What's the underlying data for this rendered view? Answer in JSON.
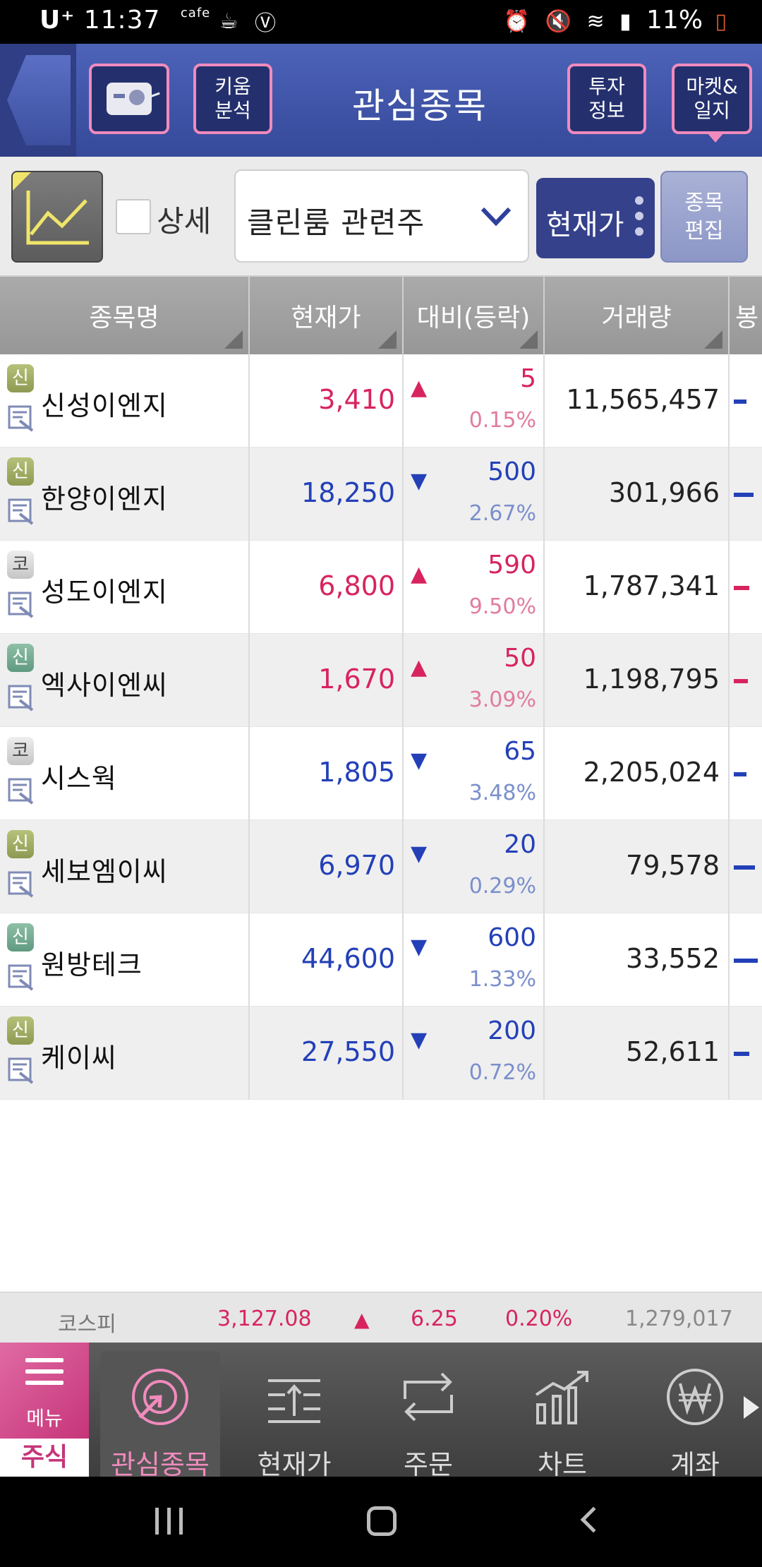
{
  "status_bar": {
    "carrier": "U⁺",
    "time": "11:37",
    "cafe_label": "cafe",
    "battery": "11%"
  },
  "header": {
    "kiwoom_label_1": "키움",
    "kiwoom_label_2": "분석",
    "title": "관심종목",
    "invest_label_1": "투자",
    "invest_label_2": "정보",
    "market_label_1": "마켓&",
    "market_label_2": "일지"
  },
  "toolbar": {
    "detail_label": "상세",
    "group_value": "클린룸 관련주",
    "price_button": "현재가",
    "edit_label_1": "종목",
    "edit_label_2": "편집"
  },
  "table": {
    "columns": [
      "종목명",
      "현재가",
      "대비(등락)",
      "거래량",
      "봉"
    ],
    "rows": [
      {
        "badge": "신",
        "badge_style": "shin",
        "name": "신성이엔지",
        "price": "3,410",
        "dir": "up",
        "change": "5",
        "pct": "0.15%",
        "volume": "11,565,457",
        "mini_color": "#2340b8"
      },
      {
        "badge": "신",
        "badge_style": "shin",
        "name": "한양이엔지",
        "price": "18,250",
        "dir": "down",
        "change": "500",
        "pct": "2.67%",
        "volume": "301,966",
        "mini_color": "#2340b8"
      },
      {
        "badge": "코",
        "badge_style": "ko",
        "name": "성도이엔지",
        "price": "6,800",
        "dir": "up",
        "change": "590",
        "pct": "9.50%",
        "volume": "1,787,341",
        "mini_color": "#d8245e"
      },
      {
        "badge": "신",
        "badge_style": "shin2",
        "name": "엑사이엔씨",
        "price": "1,670",
        "dir": "up",
        "change": "50",
        "pct": "3.09%",
        "volume": "1,198,795",
        "mini_color": "#d8245e"
      },
      {
        "badge": "코",
        "badge_style": "ko",
        "name": "시스웍",
        "price": "1,805",
        "dir": "down",
        "change": "65",
        "pct": "3.48%",
        "volume": "2,205,024",
        "mini_color": "#2340b8"
      },
      {
        "badge": "신",
        "badge_style": "shin",
        "name": "세보엠이씨",
        "price": "6,970",
        "dir": "down",
        "change": "20",
        "pct": "0.29%",
        "volume": "79,578",
        "mini_color": "#2340b8"
      },
      {
        "badge": "신",
        "badge_style": "shin2",
        "name": "원방테크",
        "price": "44,600",
        "dir": "down",
        "change": "600",
        "pct": "1.33%",
        "volume": "33,552",
        "mini_color": "#2340b8"
      },
      {
        "badge": "신",
        "badge_style": "shin",
        "name": "케이씨",
        "price": "27,550",
        "dir": "down",
        "change": "200",
        "pct": "0.72%",
        "volume": "52,611",
        "mini_color": "#2340b8"
      }
    ]
  },
  "ticker": {
    "name": "코스피",
    "value": "3,127.08",
    "change": "6.25",
    "pct": "0.20%",
    "volume": "1,279,017"
  },
  "bottom_nav": {
    "menu_label": "메뉴",
    "stock_tab": "주식",
    "items": [
      "관심종목",
      "현재가",
      "주문",
      "차트",
      "계좌"
    ]
  }
}
